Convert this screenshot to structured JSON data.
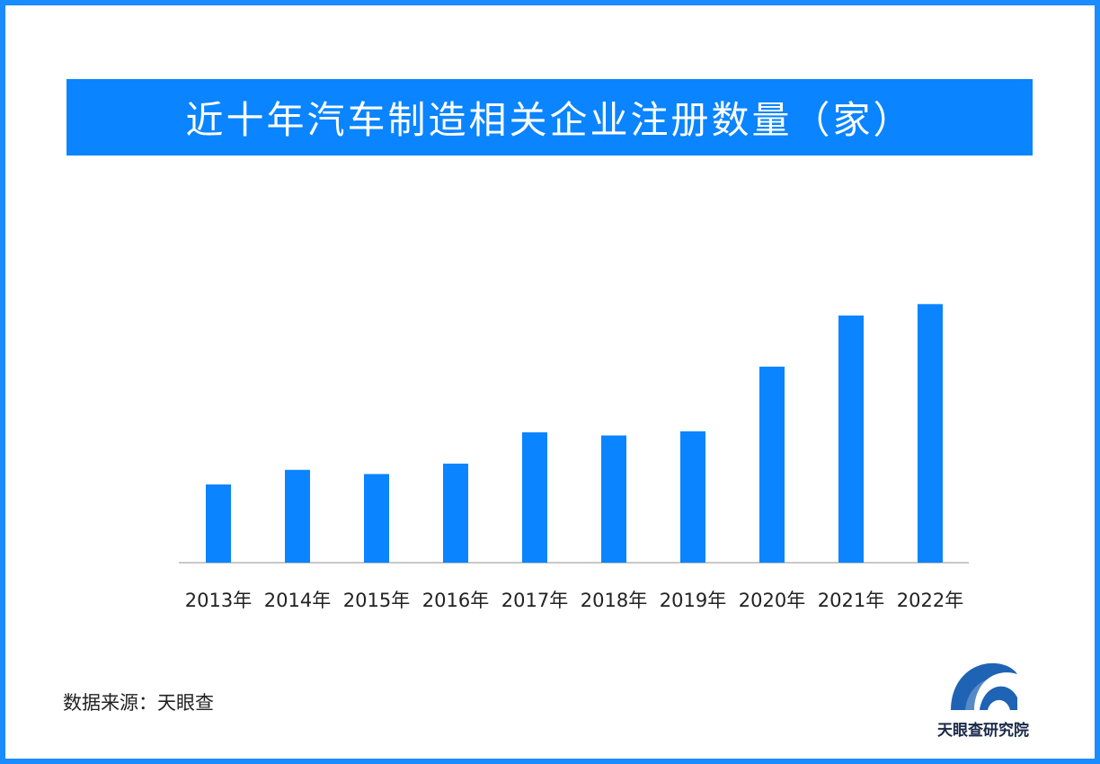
{
  "title": "近十年汽车制造相关企业注册数量（家）",
  "source": "数据来源：天眼查",
  "logo": {
    "text": "天眼查研究院",
    "icon": "tianyancha-logo-icon"
  },
  "colors": {
    "frame": "#1a8cff",
    "title_bg": "#0a84ff",
    "bar": "#0a84ff",
    "axis": "#c8c8c8"
  },
  "chart_data": {
    "type": "bar",
    "categories": [
      "2013年",
      "2014年",
      "2015年",
      "2016年",
      "2017年",
      "2018年",
      "2019年",
      "2020年",
      "2021年",
      "2022年"
    ],
    "values": [
      75,
      89,
      85,
      95,
      125,
      122,
      126,
      188,
      237,
      248
    ],
    "ylim": [
      0,
      300
    ],
    "grid": false,
    "xlabel": "",
    "ylabel": ""
  }
}
